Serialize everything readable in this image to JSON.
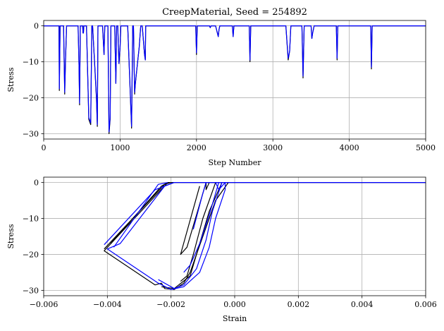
{
  "chart_data": [
    {
      "type": "line",
      "title": "CreepMaterial, Seed = 254892",
      "xlabel": "Step Number",
      "ylabel": "Stress",
      "xlim": [
        0,
        5000
      ],
      "ylim": [
        -31.5,
        1.5
      ],
      "xticks": [
        0,
        1000,
        2000,
        3000,
        4000,
        5000
      ],
      "yticks": [
        0,
        -10,
        -20,
        -30
      ],
      "xtick_labels": [
        "0",
        "1000",
        "2000",
        "3000",
        "4000",
        "5000"
      ],
      "ytick_labels": [
        "0",
        "−10",
        "−20",
        "−30"
      ],
      "grid": true,
      "series": [
        {
          "color": "#000000",
          "x": [
            0,
            200,
            205,
            215,
            225,
            260,
            275,
            285,
            300,
            450,
            462,
            470,
            480,
            510,
            515,
            520,
            525,
            560,
            590,
            615,
            630,
            640,
            690,
            702,
            710,
            720,
            770,
            790,
            800,
            810,
            820,
            840,
            855,
            870,
            880,
            930,
            945,
            955,
            970,
            985,
            1000,
            1010,
            1020,
            1040,
            1060,
            1080,
            1090,
            1100,
            1150,
            1165,
            1175,
            1190,
            1200,
            1230,
            1250,
            1270,
            1290,
            1320,
            1330,
            1335,
            1345,
            1990,
            2000,
            2010,
            2170,
            2180,
            2190,
            2250,
            2285,
            2295,
            2305,
            2470,
            2480,
            2490,
            2690,
            2700,
            2710,
            3170,
            3200,
            3220,
            3235,
            3380,
            3395,
            3410,
            3420,
            3500,
            3510,
            3520,
            3530,
            3540,
            3830,
            3840,
            3850,
            4280,
            4290,
            4300,
            5000
          ],
          "y": [
            0,
            0,
            -18,
            0,
            0,
            0,
            -19,
            -10,
            0,
            0,
            -11,
            -22,
            0,
            0,
            -2,
            -2,
            0,
            0,
            -26,
            -27.5,
            0,
            0,
            -20,
            -28,
            0,
            0,
            0,
            -8,
            0,
            0,
            0,
            0,
            -30,
            -26,
            0,
            0,
            -16,
            0,
            0,
            -10.5,
            -6,
            0,
            0,
            0,
            0,
            0,
            0,
            0,
            -28.5,
            0,
            0,
            -19,
            -16,
            -10,
            -6,
            0,
            0,
            -8,
            -9.5,
            0,
            0,
            0,
            -8,
            0,
            0,
            -0.5,
            0,
            0,
            -3,
            -1,
            0,
            0,
            -3,
            0,
            0,
            -10,
            0,
            0,
            -9.5,
            -7,
            0,
            0,
            -14.5,
            0,
            0,
            0,
            -3.5,
            -2,
            -1,
            0,
            0,
            -9.5,
            0,
            0,
            -12,
            0,
            0
          ]
        },
        {
          "color": "#0000ff",
          "x": [
            0,
            200,
            205,
            215,
            225,
            260,
            275,
            285,
            300,
            450,
            462,
            470,
            480,
            510,
            515,
            520,
            525,
            560,
            590,
            615,
            630,
            640,
            690,
            702,
            710,
            720,
            770,
            790,
            800,
            810,
            820,
            840,
            855,
            870,
            880,
            930,
            945,
            955,
            970,
            985,
            1000,
            1010,
            1020,
            1040,
            1060,
            1080,
            1090,
            1100,
            1150,
            1165,
            1175,
            1190,
            1200,
            1230,
            1250,
            1270,
            1290,
            1320,
            1330,
            1335,
            1345,
            1990,
            2000,
            2010,
            2170,
            2180,
            2190,
            2250,
            2285,
            2295,
            2305,
            2470,
            2480,
            2490,
            2690,
            2700,
            2710,
            3170,
            3200,
            3220,
            3235,
            3380,
            3395,
            3410,
            3420,
            3500,
            3510,
            3520,
            3530,
            3540,
            3830,
            3840,
            3850,
            4280,
            4290,
            4300,
            5000
          ],
          "y": [
            0,
            0,
            -17.5,
            0,
            0,
            0,
            -18.5,
            -10,
            0,
            0,
            -11,
            -21.5,
            0,
            0,
            -2,
            -2,
            0,
            0,
            -25.5,
            -27,
            0,
            0,
            -19.5,
            -27.5,
            0,
            0,
            0,
            -8,
            0,
            0,
            0,
            0,
            -29.5,
            -25.5,
            0,
            0,
            -16,
            0,
            0,
            -10.5,
            -6,
            0,
            0,
            0,
            0,
            0,
            0,
            0,
            -28,
            0,
            0,
            -18.5,
            -16,
            -10,
            -6,
            0,
            0,
            -8,
            -9.5,
            0,
            0,
            0,
            -7.5,
            0,
            0,
            -0.5,
            0,
            0,
            -3,
            -1,
            0,
            0,
            -3,
            0,
            0,
            -9.5,
            0,
            0,
            -9,
            -7,
            0,
            0,
            -14,
            0,
            0,
            0,
            -3.5,
            -2,
            -1,
            0,
            0,
            -9,
            0,
            0,
            -11.5,
            0,
            0
          ]
        }
      ]
    },
    {
      "type": "line",
      "title": "",
      "xlabel": "Strain",
      "ylabel": "Stress",
      "xlim": [
        -0.006,
        0.006
      ],
      "ylim": [
        -31.5,
        1.5
      ],
      "xticks": [
        -0.006,
        -0.004,
        -0.002,
        0.0,
        0.002,
        0.004,
        0.006
      ],
      "yticks": [
        0,
        -10,
        -20,
        -30
      ],
      "xtick_labels": [
        "−0.006",
        "−0.004",
        "−0.002",
        "0.000",
        "0.002",
        "0.004",
        "0.006"
      ],
      "ytick_labels": [
        "0",
        "−10",
        "−20",
        "−30"
      ],
      "grid": true,
      "series": [
        {
          "color": "#000000",
          "segments": [
            [
              [
                0.006,
                0
              ],
              [
                -0.0002,
                0
              ],
              [
                -0.0006,
                -5
              ],
              [
                -0.001,
                -15
              ],
              [
                -0.0014,
                -25
              ],
              [
                -0.0016,
                -28
              ],
              [
                -0.0019,
                -29.8
              ],
              [
                -0.0022,
                -29.5
              ],
              [
                -0.0023,
                -28
              ],
              [
                -0.0025,
                -28.5
              ],
              [
                -0.0041,
                -19
              ],
              [
                -0.0021,
                0
              ],
              [
                0.006,
                0
              ]
            ],
            [
              [
                -0.0004,
                0
              ],
              [
                -0.0008,
                -8
              ],
              [
                -0.0011,
                -17
              ],
              [
                -0.0014,
                -26
              ],
              [
                -0.0019,
                -29.5
              ],
              [
                -0.0023,
                -29
              ]
            ],
            [
              [
                -0.0006,
                0
              ],
              [
                -0.001,
                -10
              ],
              [
                -0.0013,
                -20
              ],
              [
                -0.0015,
                -26
              ],
              [
                -0.0017,
                -27.5
              ]
            ],
            [
              [
                -0.0041,
                -18.5
              ],
              [
                -0.0022,
                -0.5
              ],
              [
                -0.002,
                0
              ]
            ],
            [
              [
                -0.0039,
                -17
              ],
              [
                -0.0023,
                -1
              ],
              [
                -0.0021,
                0
              ]
            ],
            [
              [
                -0.0009,
                0
              ],
              [
                -0.0015,
                -18
              ],
              [
                -0.0017,
                -20
              ],
              [
                -0.0011,
                -1
              ]
            ],
            [
              [
                -0.0008,
                0
              ],
              [
                -0.0009,
                -2
              ],
              [
                -0.0009,
                0
              ]
            ]
          ]
        },
        {
          "color": "#0000ff",
          "segments": [
            [
              [
                0.006,
                0
              ],
              [
                -0.0003,
                0
              ],
              [
                -0.0003,
                -2
              ],
              [
                -0.0006,
                -10
              ],
              [
                -0.0008,
                -18
              ],
              [
                -0.0011,
                -25
              ],
              [
                -0.0016,
                -29
              ],
              [
                -0.002,
                -29.8
              ],
              [
                -0.0024,
                -28
              ],
              [
                -0.004,
                -18.5
              ],
              [
                -0.0036,
                -17
              ],
              [
                -0.0022,
                -1
              ],
              [
                -0.0019,
                0
              ],
              [
                0.006,
                0
              ]
            ],
            [
              [
                -0.0041,
                -17.3
              ],
              [
                -0.0025,
                -2
              ],
              [
                -0.0019,
                0
              ]
            ],
            [
              [
                -0.0004,
                0
              ],
              [
                -0.0007,
                -8
              ],
              [
                -0.0009,
                -16
              ],
              [
                -0.0012,
                -24
              ],
              [
                -0.0016,
                -28.5
              ],
              [
                -0.0019,
                -29.5
              ],
              [
                -0.0024,
                -27
              ]
            ],
            [
              [
                -0.0005,
                0
              ],
              [
                -0.0008,
                -9
              ],
              [
                -0.0011,
                -17
              ],
              [
                -0.0014,
                -23
              ],
              [
                -0.0016,
                -25
              ]
            ],
            [
              [
                -0.0038,
                -18
              ],
              [
                -0.0024,
                -0.5
              ],
              [
                -0.0021,
                0
              ]
            ],
            [
              [
                -0.0013,
                -13
              ],
              [
                -0.001,
                -3
              ],
              [
                -0.0009,
                0
              ]
            ],
            [
              [
                -0.0006,
                0
              ],
              [
                -0.0005,
                -2
              ],
              [
                -0.0003,
                0
              ]
            ]
          ]
        }
      ]
    }
  ]
}
